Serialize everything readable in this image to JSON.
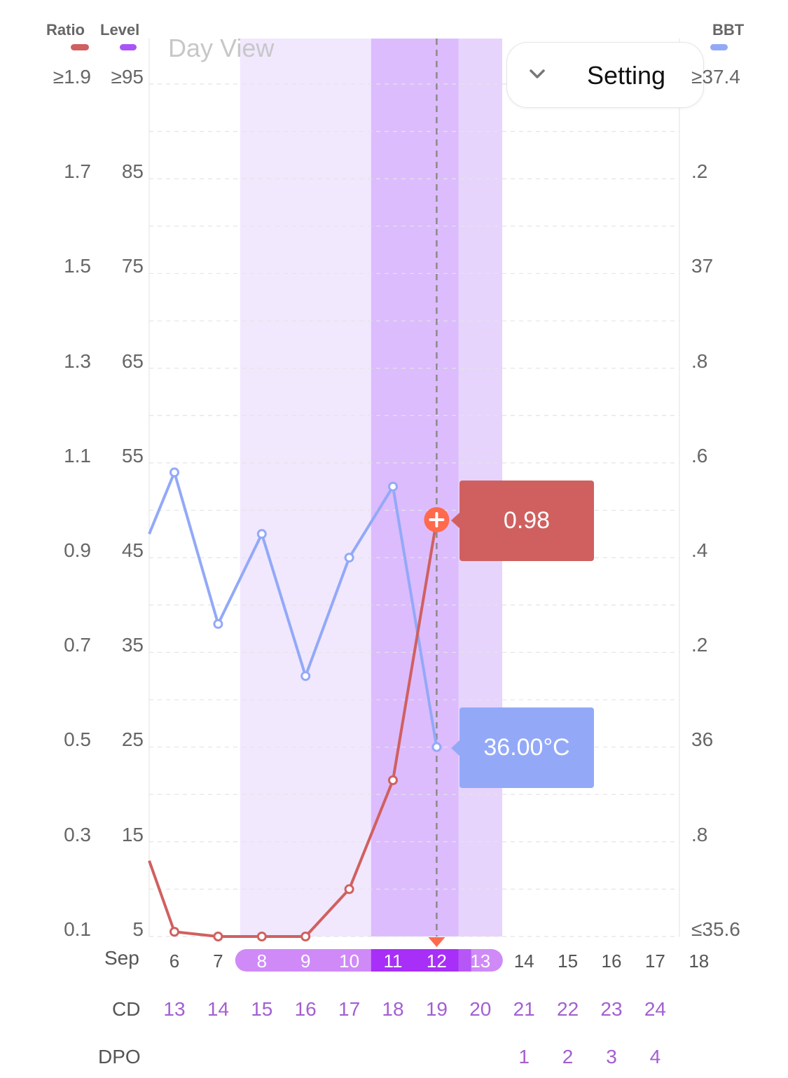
{
  "legend": {
    "ratio": {
      "label": "Ratio",
      "color": "#d06060"
    },
    "level": {
      "label": "Level",
      "color": "#a855f7"
    },
    "bbt": {
      "label": "BBT",
      "color": "#93a9f8"
    }
  },
  "view_label": "Day View",
  "setting": {
    "label": "Setting",
    "icon": "chevron-down-icon"
  },
  "axes": {
    "ratio_ticks": [
      "≥1.9",
      "1.7",
      "1.5",
      "1.3",
      "1.1",
      "0.9",
      "0.7",
      "0.5",
      "0.3",
      "0.1"
    ],
    "level_ticks": [
      "≥95",
      "85",
      "75",
      "65",
      "55",
      "45",
      "35",
      "25",
      "15",
      "5"
    ],
    "bbt_ticks": [
      "≥37.4",
      ".2",
      "37",
      ".8",
      ".6",
      ".4",
      ".2",
      "36",
      ".8",
      "≤35.6"
    ],
    "ratio_range": [
      0.1,
      1.9
    ],
    "level_range": [
      5,
      95
    ],
    "bbt_range": [
      35.6,
      37.4
    ],
    "grid": true
  },
  "chart_data": {
    "type": "line",
    "x": [
      "6",
      "7",
      "8",
      "9",
      "10",
      "11",
      "12",
      "13",
      "14",
      "15",
      "16",
      "17",
      "18"
    ],
    "series": [
      {
        "name": "Ratio",
        "color": "#d06060",
        "values": [
          0.11,
          0.1,
          0.1,
          0.1,
          0.2,
          0.43,
          0.98,
          null,
          null,
          null,
          null,
          null,
          null
        ]
      },
      {
        "name": "BBT",
        "color": "#93a9f8",
        "unit": "°C",
        "values": [
          36.58,
          36.26,
          36.45,
          36.15,
          36.4,
          36.55,
          36.0,
          null,
          null,
          null,
          null,
          null,
          null
        ]
      }
    ],
    "partial_start": {
      "x_before_6": true,
      "ratio": 0.26,
      "bbt": 36.45
    },
    "bands": [
      {
        "from": "8",
        "to": "13",
        "level": "light"
      },
      {
        "from": "11",
        "to": "12",
        "level": "dark"
      },
      {
        "from": "13",
        "to": "13",
        "level": "medium"
      }
    ],
    "selected_x": "12",
    "tooltips": {
      "ratio": "0.98",
      "bbt": "36.00°C"
    }
  },
  "x_rows": {
    "month_label": "Sep",
    "dates": [
      "6",
      "7",
      "8",
      "9",
      "10",
      "11",
      "12",
      "13",
      "14",
      "15",
      "16",
      "17",
      "18"
    ],
    "cd_label": "CD",
    "cd": [
      "13",
      "14",
      "15",
      "16",
      "17",
      "18",
      "19",
      "20",
      "21",
      "22",
      "23",
      "24",
      ""
    ],
    "dpo_label": "DPO",
    "dpo": [
      "",
      "",
      "",
      "",
      "",
      "",
      "",
      "",
      "1",
      "2",
      "3",
      "4",
      ""
    ]
  },
  "colors": {
    "band_light": "#f1e8fe",
    "band_mid": "#e6d4fd",
    "band_dark": "#dcbcfd",
    "pill_light": "#cf8af8",
    "pill_dark": "#a82ff7",
    "purple_text": "#a35fd0",
    "marker": "#ff6a4d",
    "grid": "#e4e4e4"
  }
}
